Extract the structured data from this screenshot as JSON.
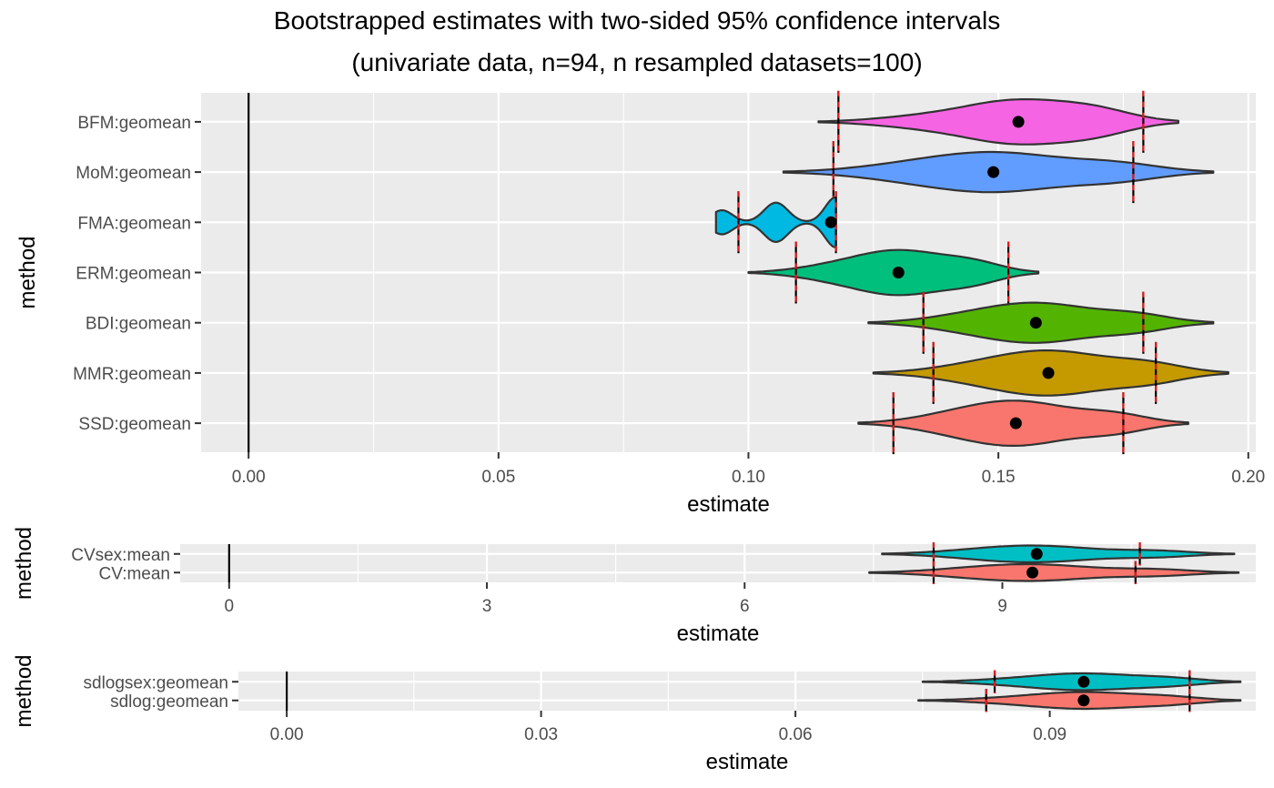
{
  "title_line1": "Bootstrapped estimates with two-sided 95% confidence intervals",
  "title_line2": "(univariate data, n=94, n resampled datasets=100)",
  "colors": {
    "panel_bg": "#EBEBEB",
    "grid": "#FFFFFF",
    "zero_line": "#000000",
    "violin_outline": "#333333",
    "point": "#000000",
    "ci_marker_dash": "#E41A1C"
  },
  "chart_data": [
    {
      "type": "violin",
      "xlabel": "estimate",
      "ylabel": "method",
      "xlim": [
        -0.0095,
        0.2015
      ],
      "xticks": [
        0.0,
        0.05,
        0.1,
        0.15,
        0.2
      ],
      "xtick_labels": [
        "0.00",
        "0.05",
        "0.10",
        "0.15",
        "0.20"
      ],
      "reference_line_x": 0,
      "series": [
        {
          "name": "BFM:geomean",
          "color": "#F564E3",
          "estimate": 0.154,
          "ci": [
            0.118,
            0.179
          ],
          "range": [
            0.114,
            0.186
          ],
          "max_halfwidth": 0.45
        },
        {
          "name": "MoM:geomean",
          "color": "#619CFF",
          "estimate": 0.149,
          "ci": [
            0.117,
            0.177
          ],
          "range": [
            0.107,
            0.193
          ],
          "max_halfwidth": 0.4
        },
        {
          "name": "FMA:geomean",
          "color": "#00B9E3",
          "estimate": 0.1165,
          "ci": [
            0.098,
            0.1175
          ],
          "range": [
            0.0935,
            0.1175
          ],
          "max_halfwidth": 0.5
        },
        {
          "name": "ERM:geomean",
          "color": "#00BF7D",
          "estimate": 0.13,
          "ci": [
            0.1095,
            0.152
          ],
          "range": [
            0.1,
            0.158
          ],
          "max_halfwidth": 0.45
        },
        {
          "name": "BDI:geomean",
          "color": "#53B400",
          "estimate": 0.1575,
          "ci": [
            0.135,
            0.179
          ],
          "range": [
            0.124,
            0.193
          ],
          "max_halfwidth": 0.4
        },
        {
          "name": "MMR:geomean",
          "color": "#C49A00",
          "estimate": 0.16,
          "ci": [
            0.137,
            0.1815
          ],
          "range": [
            0.125,
            0.196
          ],
          "max_halfwidth": 0.45
        },
        {
          "name": "SSD:geomean",
          "color": "#F8766D",
          "estimate": 0.1535,
          "ci": [
            0.129,
            0.175
          ],
          "range": [
            0.122,
            0.188
          ],
          "max_halfwidth": 0.45
        }
      ]
    },
    {
      "type": "violin",
      "xlabel": "estimate",
      "ylabel": "method",
      "xlim": [
        -0.57,
        11.95
      ],
      "xticks": [
        0,
        3,
        6,
        9
      ],
      "xtick_labels": [
        "0",
        "3",
        "6",
        "9"
      ],
      "reference_line_x": 0,
      "series": [
        {
          "name": "CVsex:mean",
          "color": "#00BFC4",
          "estimate": 9.4,
          "ci": [
            8.2,
            10.6
          ],
          "range": [
            7.6,
            11.7
          ],
          "max_halfwidth": 0.45
        },
        {
          "name": "CV:mean",
          "color": "#F8766D",
          "estimate": 9.35,
          "ci": [
            8.2,
            10.55
          ],
          "range": [
            7.45,
            11.75
          ],
          "max_halfwidth": 0.45
        }
      ]
    },
    {
      "type": "violin",
      "xlabel": "estimate",
      "ylabel": "method",
      "xlim": [
        -0.0057,
        0.1143
      ],
      "xticks": [
        0.0,
        0.03,
        0.06,
        0.09
      ],
      "xtick_labels": [
        "0.00",
        "0.03",
        "0.06",
        "0.09"
      ],
      "reference_line_x": 0,
      "series": [
        {
          "name": "sdlogsex:geomean",
          "color": "#00BFC4",
          "estimate": 0.094,
          "ci": [
            0.0835,
            0.1065
          ],
          "range": [
            0.075,
            0.1125
          ],
          "max_halfwidth": 0.45
        },
        {
          "name": "sdlog:geomean",
          "color": "#F8766D",
          "estimate": 0.094,
          "ci": [
            0.0825,
            0.1065
          ],
          "range": [
            0.0745,
            0.1125
          ],
          "max_halfwidth": 0.45
        }
      ]
    }
  ]
}
